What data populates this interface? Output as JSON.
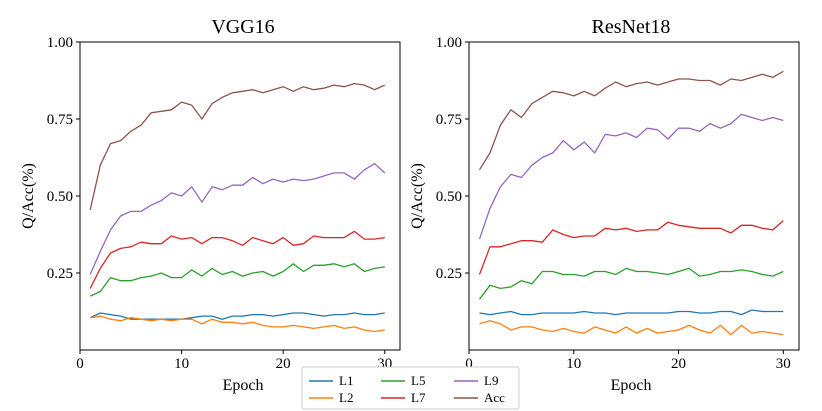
{
  "chart_data": [
    {
      "type": "line",
      "title": "VGG16",
      "xlabel": "Epoch",
      "ylabel": "Q/Acc(%)",
      "xlim": [
        0,
        31.5
      ],
      "ylim": [
        0.0,
        1.0
      ],
      "xticks": [
        0,
        10,
        20,
        30
      ],
      "xtick_labels": [
        "0",
        "10",
        "20",
        "30"
      ],
      "yticks": [
        0.25,
        0.5,
        0.75,
        1.0
      ],
      "ytick_labels": [
        "0.25",
        "0.50",
        "0.75",
        "1.00"
      ],
      "x": [
        1,
        2,
        3,
        4,
        5,
        6,
        7,
        8,
        9,
        10,
        11,
        12,
        13,
        14,
        15,
        16,
        17,
        18,
        19,
        20,
        21,
        22,
        23,
        24,
        25,
        26,
        27,
        28,
        29,
        30
      ],
      "series": [
        {
          "name": "L1",
          "color": "#1f77b4",
          "values": [
            0.105,
            0.12,
            0.115,
            0.11,
            0.1,
            0.1,
            0.1,
            0.1,
            0.1,
            0.1,
            0.105,
            0.11,
            0.11,
            0.1,
            0.11,
            0.11,
            0.115,
            0.115,
            0.11,
            0.115,
            0.12,
            0.12,
            0.115,
            0.11,
            0.115,
            0.115,
            0.12,
            0.115,
            0.115,
            0.12
          ]
        },
        {
          "name": "L2",
          "color": "#ff7f0e",
          "values": [
            0.105,
            0.11,
            0.1,
            0.095,
            0.105,
            0.1,
            0.095,
            0.1,
            0.095,
            0.1,
            0.1,
            0.085,
            0.1,
            0.09,
            0.09,
            0.085,
            0.09,
            0.08,
            0.075,
            0.075,
            0.08,
            0.075,
            0.07,
            0.075,
            0.08,
            0.07,
            0.075,
            0.065,
            0.06,
            0.065
          ]
        },
        {
          "name": "L5",
          "color": "#2ca02c",
          "values": [
            0.175,
            0.19,
            0.235,
            0.225,
            0.225,
            0.235,
            0.24,
            0.25,
            0.235,
            0.235,
            0.26,
            0.24,
            0.265,
            0.245,
            0.255,
            0.24,
            0.25,
            0.255,
            0.24,
            0.255,
            0.28,
            0.255,
            0.275,
            0.275,
            0.28,
            0.27,
            0.28,
            0.255,
            0.265,
            0.27
          ]
        },
        {
          "name": "L7",
          "color": "#d62728",
          "values": [
            0.2,
            0.265,
            0.315,
            0.33,
            0.335,
            0.35,
            0.345,
            0.345,
            0.37,
            0.36,
            0.365,
            0.345,
            0.365,
            0.365,
            0.355,
            0.34,
            0.365,
            0.355,
            0.345,
            0.365,
            0.34,
            0.345,
            0.37,
            0.365,
            0.365,
            0.365,
            0.385,
            0.36,
            0.36,
            0.365
          ]
        },
        {
          "name": "L9",
          "color": "#9467bd",
          "values": [
            0.245,
            0.32,
            0.39,
            0.435,
            0.45,
            0.45,
            0.47,
            0.485,
            0.51,
            0.5,
            0.53,
            0.48,
            0.53,
            0.52,
            0.535,
            0.535,
            0.56,
            0.54,
            0.555,
            0.545,
            0.555,
            0.55,
            0.555,
            0.565,
            0.575,
            0.575,
            0.555,
            0.585,
            0.605,
            0.575
          ]
        },
        {
          "name": "Acc",
          "color": "#8c564b",
          "values": [
            0.455,
            0.6,
            0.67,
            0.68,
            0.71,
            0.73,
            0.77,
            0.775,
            0.78,
            0.805,
            0.795,
            0.75,
            0.8,
            0.82,
            0.835,
            0.84,
            0.845,
            0.835,
            0.845,
            0.855,
            0.84,
            0.855,
            0.845,
            0.85,
            0.86,
            0.855,
            0.865,
            0.86,
            0.845,
            0.86
          ]
        }
      ]
    },
    {
      "type": "line",
      "title": "ResNet18",
      "xlabel": "Epoch",
      "ylabel": "Q/Acc(%)",
      "xlim": [
        0,
        31.5
      ],
      "ylim": [
        0.0,
        1.0
      ],
      "xticks": [
        0,
        10,
        20,
        30
      ],
      "xtick_labels": [
        "0",
        "10",
        "20",
        "30"
      ],
      "yticks": [
        0.25,
        0.5,
        0.75,
        1.0
      ],
      "ytick_labels": [
        "0.25",
        "0.50",
        "0.75",
        "1.00"
      ],
      "x": [
        1,
        2,
        3,
        4,
        5,
        6,
        7,
        8,
        9,
        10,
        11,
        12,
        13,
        14,
        15,
        16,
        17,
        18,
        19,
        20,
        21,
        22,
        23,
        24,
        25,
        26,
        27,
        28,
        29,
        30
      ],
      "series": [
        {
          "name": "L1",
          "color": "#1f77b4",
          "values": [
            0.12,
            0.115,
            0.12,
            0.125,
            0.115,
            0.115,
            0.12,
            0.12,
            0.12,
            0.12,
            0.125,
            0.12,
            0.12,
            0.115,
            0.12,
            0.12,
            0.12,
            0.12,
            0.12,
            0.125,
            0.125,
            0.12,
            0.12,
            0.125,
            0.125,
            0.115,
            0.13,
            0.125,
            0.125,
            0.125
          ]
        },
        {
          "name": "L2",
          "color": "#ff7f0e",
          "values": [
            0.085,
            0.095,
            0.085,
            0.065,
            0.075,
            0.075,
            0.065,
            0.06,
            0.07,
            0.06,
            0.055,
            0.075,
            0.065,
            0.055,
            0.075,
            0.055,
            0.07,
            0.055,
            0.06,
            0.065,
            0.08,
            0.065,
            0.055,
            0.08,
            0.05,
            0.08,
            0.055,
            0.06,
            0.055,
            0.05
          ]
        },
        {
          "name": "L5",
          "color": "#2ca02c",
          "values": [
            0.165,
            0.21,
            0.2,
            0.205,
            0.225,
            0.215,
            0.255,
            0.255,
            0.245,
            0.245,
            0.24,
            0.255,
            0.255,
            0.245,
            0.265,
            0.255,
            0.255,
            0.25,
            0.245,
            0.255,
            0.265,
            0.24,
            0.245,
            0.255,
            0.255,
            0.26,
            0.255,
            0.245,
            0.24,
            0.255
          ]
        },
        {
          "name": "L7",
          "color": "#d62728",
          "values": [
            0.245,
            0.335,
            0.335,
            0.345,
            0.355,
            0.355,
            0.35,
            0.39,
            0.375,
            0.365,
            0.37,
            0.37,
            0.395,
            0.39,
            0.395,
            0.385,
            0.39,
            0.39,
            0.415,
            0.405,
            0.4,
            0.395,
            0.395,
            0.395,
            0.38,
            0.405,
            0.405,
            0.395,
            0.39,
            0.42
          ]
        },
        {
          "name": "L9",
          "color": "#9467bd",
          "values": [
            0.36,
            0.46,
            0.53,
            0.57,
            0.56,
            0.6,
            0.625,
            0.64,
            0.68,
            0.65,
            0.675,
            0.64,
            0.7,
            0.695,
            0.705,
            0.69,
            0.72,
            0.715,
            0.685,
            0.72,
            0.72,
            0.71,
            0.735,
            0.72,
            0.735,
            0.765,
            0.755,
            0.745,
            0.755,
            0.745
          ]
        },
        {
          "name": "Acc",
          "color": "#8c564b",
          "values": [
            0.585,
            0.64,
            0.73,
            0.78,
            0.755,
            0.8,
            0.82,
            0.84,
            0.835,
            0.825,
            0.84,
            0.825,
            0.85,
            0.87,
            0.855,
            0.865,
            0.87,
            0.86,
            0.87,
            0.88,
            0.88,
            0.875,
            0.875,
            0.86,
            0.88,
            0.875,
            0.885,
            0.895,
            0.885,
            0.905
          ]
        }
      ]
    }
  ],
  "legend": {
    "location": "bottom-center",
    "entries": [
      {
        "label": "L1",
        "color": "#1f77b4"
      },
      {
        "label": "L2",
        "color": "#ff7f0e"
      },
      {
        "label": "L5",
        "color": "#2ca02c"
      },
      {
        "label": "L7",
        "color": "#d62728"
      },
      {
        "label": "L9",
        "color": "#9467bd"
      },
      {
        "label": "Acc",
        "color": "#8c564b"
      }
    ]
  }
}
